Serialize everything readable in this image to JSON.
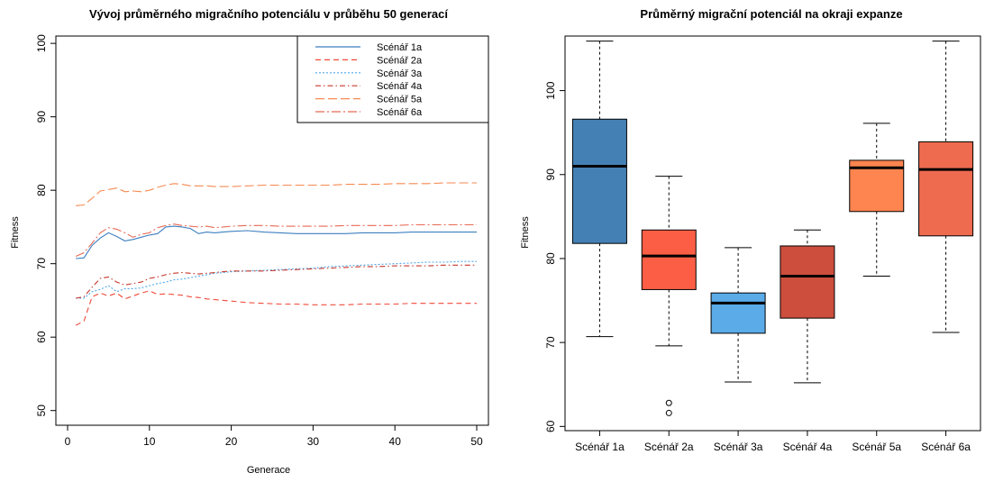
{
  "chart_data": [
    {
      "type": "line",
      "title": "Vývoj průměrného migračního potenciálu v průběhu 50 generací",
      "xlabel": "Generace",
      "ylabel": "Fitness",
      "xlim": [
        0,
        50
      ],
      "ylim": [
        48,
        101
      ],
      "x_ticks": [
        "0",
        "10",
        "20",
        "30",
        "40",
        "50"
      ],
      "y_ticks": [
        "50",
        "60",
        "70",
        "80",
        "90",
        "100"
      ],
      "grid": false,
      "legend_position": "top-right",
      "x": [
        1,
        2,
        3,
        4,
        5,
        6,
        7,
        8,
        9,
        10,
        11,
        12,
        13,
        14,
        15,
        16,
        17,
        18,
        19,
        20,
        22,
        24,
        26,
        28,
        30,
        32,
        34,
        36,
        38,
        40,
        42,
        44,
        46,
        48,
        50
      ],
      "series": [
        {
          "name": "Scénář 1a",
          "color": "#3d7fc0",
          "dash": "solid",
          "values": [
            70.7,
            70.8,
            72.5,
            73.5,
            74.2,
            73.7,
            73.1,
            73.3,
            73.6,
            73.9,
            74.1,
            75.0,
            75.1,
            75.0,
            74.8,
            74.1,
            74.3,
            74.2,
            74.3,
            74.4,
            74.5,
            74.3,
            74.2,
            74.1,
            74.1,
            74.1,
            74.1,
            74.2,
            74.2,
            74.2,
            74.3,
            74.3,
            74.3,
            74.3,
            74.3
          ]
        },
        {
          "name": "Scénář 2a",
          "color": "#ef4a3a",
          "dash": "6,4",
          "values": [
            61.6,
            62.2,
            65.5,
            66.0,
            65.6,
            66.0,
            65.2,
            65.6,
            66.0,
            66.3,
            65.8,
            65.9,
            65.8,
            65.7,
            65.5,
            65.4,
            65.2,
            65.1,
            65.0,
            64.9,
            64.7,
            64.6,
            64.5,
            64.5,
            64.4,
            64.4,
            64.4,
            64.5,
            64.5,
            64.5,
            64.6,
            64.6,
            64.6,
            64.6,
            64.6
          ]
        },
        {
          "name": "Scénář 3a",
          "color": "#4fa6e8",
          "dash": "2,2",
          "values": [
            65.3,
            65.3,
            66.2,
            66.5,
            67.0,
            66.2,
            66.6,
            66.6,
            66.7,
            67.0,
            67.3,
            67.5,
            67.8,
            67.9,
            68.1,
            68.3,
            68.5,
            68.7,
            68.8,
            68.9,
            69.0,
            69.1,
            69.2,
            69.3,
            69.4,
            69.6,
            69.7,
            69.8,
            69.9,
            70.0,
            70.1,
            70.2,
            70.2,
            70.3,
            70.3
          ]
        },
        {
          "name": "Scénář 4a",
          "color": "#c8382c",
          "dash": "6,3,1.5,3",
          "values": [
            65.3,
            65.5,
            66.8,
            68.0,
            68.2,
            67.5,
            67.1,
            67.3,
            67.5,
            68.0,
            68.2,
            68.5,
            68.7,
            68.8,
            68.7,
            68.6,
            68.7,
            68.8,
            68.9,
            69.0,
            69.0,
            69.0,
            69.1,
            69.2,
            69.3,
            69.4,
            69.5,
            69.6,
            69.6,
            69.7,
            69.7,
            69.7,
            69.8,
            69.8,
            69.8
          ]
        },
        {
          "name": "Scénář 5a",
          "color": "#f58a52",
          "dash": "10,4",
          "values": [
            77.9,
            78.0,
            78.9,
            79.9,
            80.1,
            80.3,
            79.8,
            79.9,
            79.8,
            80.0,
            80.4,
            80.7,
            80.9,
            80.8,
            80.6,
            80.6,
            80.6,
            80.5,
            80.5,
            80.5,
            80.6,
            80.7,
            80.7,
            80.7,
            80.7,
            80.7,
            80.8,
            80.8,
            80.8,
            80.9,
            80.9,
            80.9,
            81.0,
            81.0,
            81.0
          ]
        },
        {
          "name": "Scénář 6a",
          "color": "#e86a55",
          "dash": "10,3,2,3",
          "values": [
            71.0,
            71.5,
            72.8,
            74.2,
            74.9,
            74.7,
            74.2,
            73.6,
            74.0,
            74.2,
            74.9,
            75.2,
            75.4,
            75.2,
            75.1,
            75.0,
            75.1,
            74.9,
            75.0,
            75.1,
            75.2,
            75.2,
            75.1,
            75.1,
            75.1,
            75.1,
            75.2,
            75.2,
            75.2,
            75.2,
            75.3,
            75.3,
            75.3,
            75.3,
            75.3
          ]
        }
      ]
    },
    {
      "type": "box",
      "title": "Průměrný migrační potenciál na okraji expanze",
      "xlabel": "",
      "ylabel": "Fitness",
      "ylim": [
        59.5,
        106.5
      ],
      "y_ticks": [
        "60",
        "70",
        "80",
        "90",
        "100"
      ],
      "grid": false,
      "categories": [
        "Scénář 1a",
        "Scénář 2a",
        "Scénář 3a",
        "Scénář 4a",
        "Scénář 5a",
        "Scénář 6a"
      ],
      "boxes": [
        {
          "min": 70.7,
          "q1": 81.8,
          "median": 91.0,
          "q3": 96.6,
          "max": 105.9,
          "outliers": [],
          "color": "#4580b4"
        },
        {
          "min": 69.6,
          "q1": 76.3,
          "median": 80.3,
          "q3": 83.4,
          "max": 89.8,
          "outliers": [
            62.8,
            61.6
          ],
          "color": "#fc5e45"
        },
        {
          "min": 65.3,
          "q1": 71.1,
          "median": 74.7,
          "q3": 75.9,
          "max": 81.3,
          "outliers": [],
          "color": "#5aabe8"
        },
        {
          "min": 65.2,
          "q1": 72.9,
          "median": 77.9,
          "q3": 81.5,
          "max": 83.4,
          "outliers": [],
          "color": "#cd4e3d"
        },
        {
          "min": 77.9,
          "q1": 85.6,
          "median": 90.8,
          "q3": 91.7,
          "max": 96.1,
          "outliers": [],
          "color": "#fe8450"
        },
        {
          "min": 71.2,
          "q1": 82.7,
          "median": 90.6,
          "q3": 93.9,
          "max": 105.9,
          "outliers": [],
          "color": "#ee6b50"
        }
      ]
    }
  ]
}
